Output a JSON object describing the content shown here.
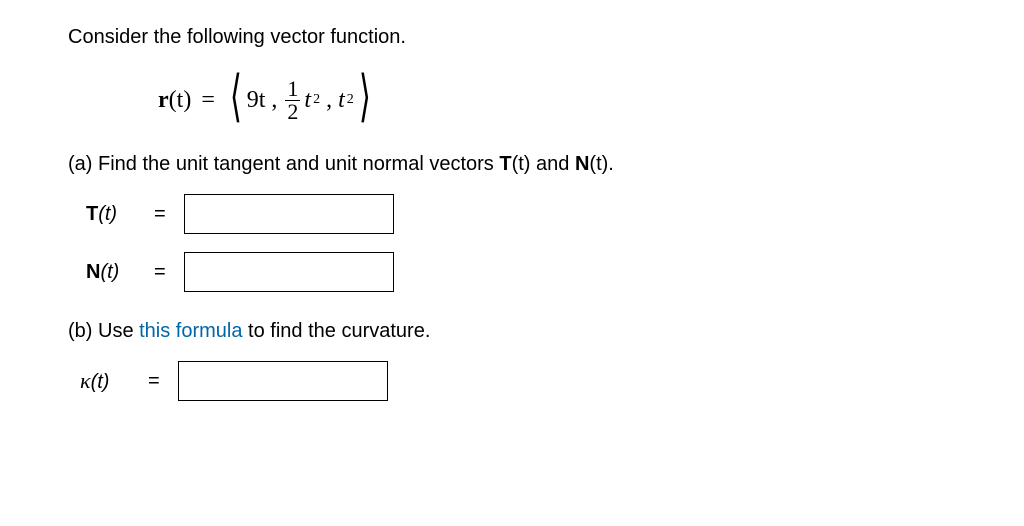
{
  "intro": "Consider the following vector function.",
  "equation": {
    "lhs_bold": "r",
    "lhs_rest": "(t)",
    "c1": "9t",
    "frac_num": "1",
    "frac_den": "2",
    "t2": "t",
    "sup": "2",
    "t3": "t",
    "sup3": "2"
  },
  "partA": {
    "prefix": "(a) Find the unit tangent and unit normal vectors ",
    "T": "T",
    "arg1": "(t)",
    "and": " and ",
    "N": "N",
    "arg2": "(t)",
    "period": "."
  },
  "labels": {
    "T": "T",
    "Targ": "(t)",
    "N": "N",
    "Narg": "(t)",
    "kappa": "κ",
    "karg": "(t)"
  },
  "eq": "=",
  "partB": {
    "prefix": "(b) Use ",
    "link": "this formula",
    "suffix": " to find the curvature."
  },
  "inputs": {
    "T": "",
    "N": "",
    "k": ""
  }
}
